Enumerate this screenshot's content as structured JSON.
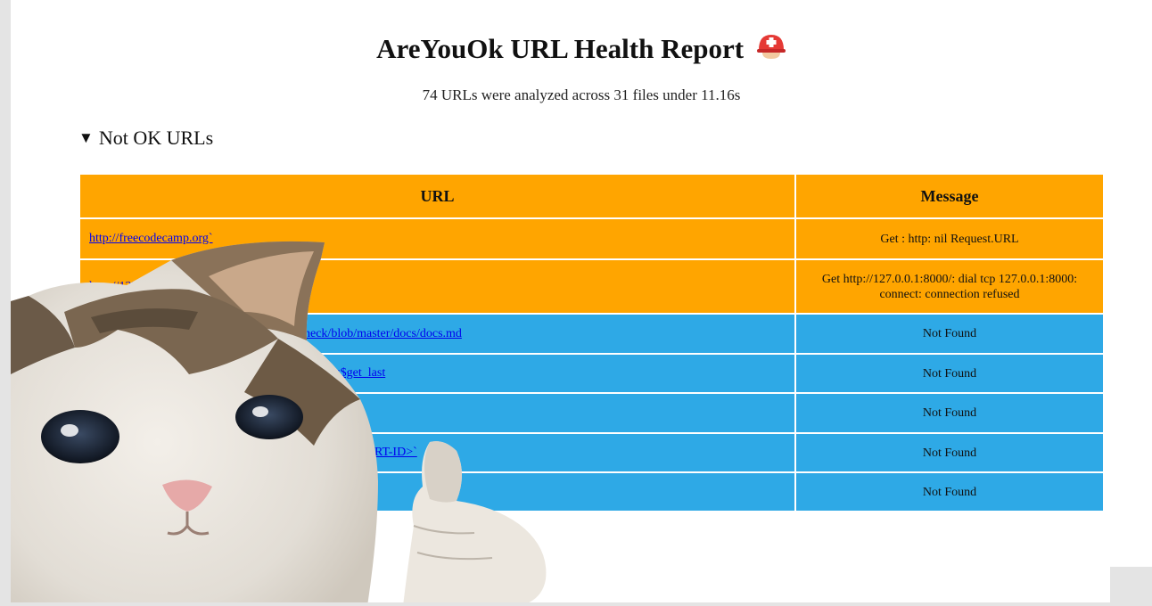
{
  "report": {
    "title": "AreYouOk URL Health Report",
    "summary": "74 URLs were analyzed across 31 files under 11.16s",
    "section_label": "Not OK URLs",
    "columns": {
      "url": "URL",
      "message": "Message"
    },
    "rows": [
      {
        "url": "http://freecodecamp.org`",
        "message": "Get : http: nil Request.URL",
        "status": "error"
      },
      {
        "url": "http://127.0.0.1:8000/",
        "message": "Get http://127.0.0.1:8000/: dial tcp 127.0.0.1:8000: connect: connection refused",
        "status": "error"
      },
      {
        "url": "heck/blob/master/docs/docs.md",
        "message": "Not Found",
        "status": "not-found"
      },
      {
        "url": "&id=$get_last",
        "message": "Not Found",
        "status": "not-found"
      },
      {
        "url": "",
        "message": "Not Found",
        "status": "not-found"
      },
      {
        "url": "RT-ID>`",
        "message": "Not Found",
        "status": "not-found"
      },
      {
        "url": "",
        "message": "Not Found",
        "status": "not-found"
      }
    ]
  },
  "colors": {
    "error_row": "#ffa500",
    "not_found_row": "#2ea9e6",
    "link": "#0000ee"
  },
  "icons": {
    "title_icon": "rescue-helmet-icon",
    "section_toggle": "triangle-down-icon"
  },
  "overlay": {
    "image": "thumbs-up-cat-meme"
  }
}
